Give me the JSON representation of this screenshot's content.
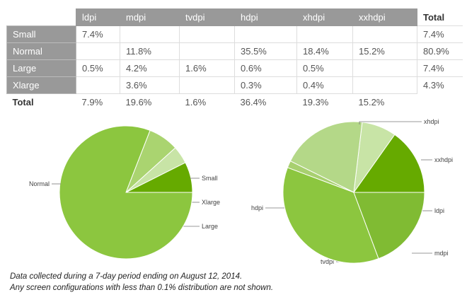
{
  "table": {
    "columns": [
      "ldpi",
      "mdpi",
      "tvdpi",
      "hdpi",
      "xhdpi",
      "xxhdpi"
    ],
    "total_header": "Total",
    "rows": [
      {
        "label": "Small",
        "cells": [
          "7.4%",
          "",
          "",
          "",
          "",
          ""
        ],
        "total": "7.4%"
      },
      {
        "label": "Normal",
        "cells": [
          "",
          "11.8%",
          "",
          "35.5%",
          "18.4%",
          "15.2%"
        ],
        "total": "80.9%"
      },
      {
        "label": "Large",
        "cells": [
          "0.5%",
          "4.2%",
          "1.6%",
          "0.6%",
          "0.5%",
          ""
        ],
        "total": "7.4%"
      },
      {
        "label": "Xlarge",
        "cells": [
          "",
          "3.6%",
          "",
          "0.3%",
          "0.4%",
          ""
        ],
        "total": "4.3%"
      }
    ],
    "totals": {
      "label": "Total",
      "cells": [
        "7.9%",
        "19.6%",
        "1.6%",
        "36.4%",
        "19.3%",
        "15.2%"
      ]
    }
  },
  "chart_data": [
    {
      "type": "pie",
      "title": "",
      "slices": [
        {
          "label": "Small",
          "value": 7.4,
          "color": "#66aa00"
        },
        {
          "label": "Xlarge",
          "value": 4.3,
          "color": "#c8e4a6"
        },
        {
          "label": "Large",
          "value": 7.4,
          "color": "#aad470"
        },
        {
          "label": "Normal",
          "value": 80.9,
          "color": "#8cc63f"
        }
      ]
    },
    {
      "type": "pie",
      "title": "",
      "slices": [
        {
          "label": "xxhdpi",
          "value": 15.2,
          "color": "#66aa00"
        },
        {
          "label": "ldpi",
          "value": 7.9,
          "color": "#c8e4a6"
        },
        {
          "label": "mdpi",
          "value": 19.6,
          "color": "#b4d888"
        },
        {
          "label": "tvdpi",
          "value": 1.6,
          "color": "#a8d070"
        },
        {
          "label": "hdpi",
          "value": 36.4,
          "color": "#8cc63f"
        },
        {
          "label": "xhdpi",
          "value": 19.3,
          "color": "#80bb33"
        }
      ]
    }
  ],
  "footnotes": [
    "Data collected during a 7-day period ending on August 12, 2014.",
    "Any screen configurations with less than 0.1% distribution are not shown."
  ]
}
